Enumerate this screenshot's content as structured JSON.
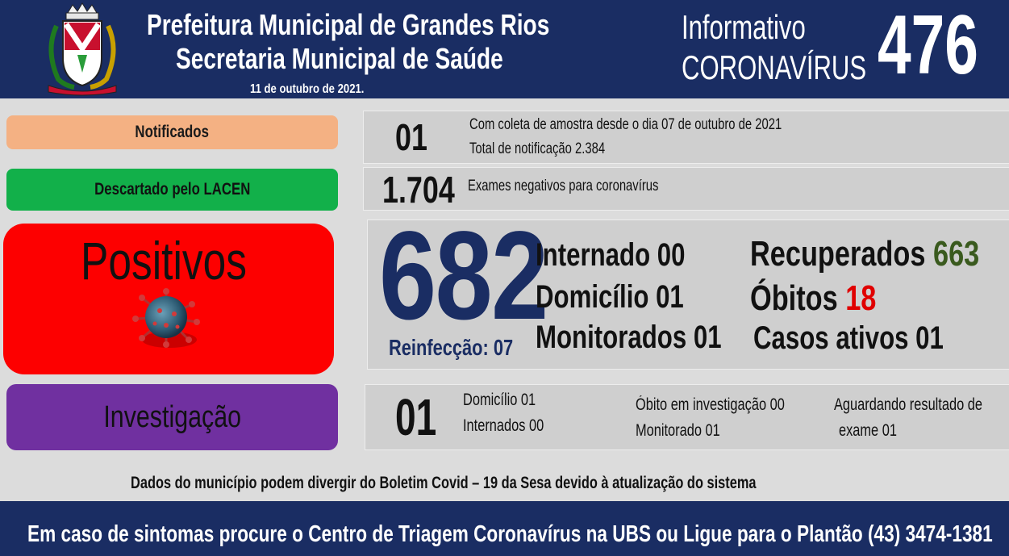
{
  "header": {
    "title_line1": "Prefeitura Municipal de Grandes Rios",
    "title_line2": "Secretaria Municipal de Saúde",
    "date": "11 de outubro  de 2021.",
    "info_line1": "Informativo",
    "info_line2": "CORONAVÍRUS",
    "bulletin_number": "476"
  },
  "notificados": {
    "label": "Notificados",
    "count": "01",
    "line1": "Com coleta de amostra desde o dia 07 de outubro de 2021",
    "line2": "Total de notificação  2.384"
  },
  "descartado": {
    "label": "Descartado  pelo LACEN",
    "count": "1.704",
    "description": "Exames negativos  para coronavírus"
  },
  "positivos": {
    "label": "Positivos",
    "total": "682",
    "reinfeccao": "Reinfecção: 07",
    "internado": "Internado 00",
    "domicilio": "Domicílio 01",
    "monitorados": "Monitorados 01",
    "recuperados_label": "Recuperados",
    "recuperados_value": "663",
    "obitos_label": "Óbitos",
    "obitos_value": "18",
    "casos_ativos": "Casos ativos 01"
  },
  "investigacao": {
    "label": "Investigação",
    "count": "01",
    "domicilio": "Domicílio 01",
    "internados": "Internados 00",
    "obito_inv": "Óbito  em investigação 00",
    "monitorado": "Monitorado 01",
    "aguardando_line1": "Aguardando resultado de",
    "aguardando_line2": "exame 01"
  },
  "disclaimer": "Dados do município  podem  divergir do Boletim  Covid – 19 da Sesa devido à atualização  do sistema",
  "footer": "Em caso de sintomas  procure  o Centro de Triagem  Coronavírus  na UBS ou Ligue para o Plantão  (43) 3474-1381",
  "colors": {
    "navy": "#1a2d63",
    "notificados": "#f4b183",
    "descartado": "#12b04a",
    "positivos": "#fd0000",
    "investigacao": "#7030a0",
    "recuperados": "#3a5a1e",
    "obitos": "#e00000"
  },
  "icons": [
    "municipal-crest-icon",
    "coronavirus-icon"
  ]
}
